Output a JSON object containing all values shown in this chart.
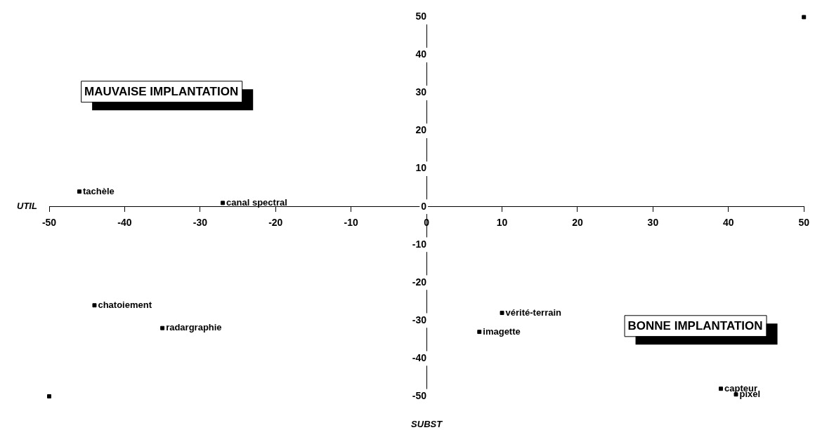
{
  "chart_data": {
    "type": "scatter",
    "xlabel": "SUBST",
    "ylabel": "UTIL",
    "x": [
      50,
      -50,
      -46,
      -27,
      -44,
      -35,
      10,
      7,
      39,
      41
    ],
    "series": [
      {
        "color": "#000000",
        "values": [
          50,
          -50,
          4,
          1,
          -26,
          -32,
          -28,
          -33,
          -48,
          -49.5
        ]
      }
    ],
    "xlim": [
      -50,
      50
    ],
    "xticks": [
      -50,
      -40,
      -30,
      -20,
      -10,
      0,
      10,
      20,
      30,
      40,
      50
    ],
    "ylim": [
      -50,
      50
    ],
    "yticks": [
      -50,
      -40,
      -30,
      -20,
      -10,
      0,
      10,
      20,
      30,
      40,
      50
    ],
    "grid": false,
    "legend": false,
    "marker": "square",
    "annotations": [
      "MAUVAISE IMPLANTATION",
      "BONNE IMPLANTATION",
      {
        "text": "tachèle",
        "x": -46,
        "y": 4
      },
      {
        "text": "canal spectral",
        "x": -27,
        "y": 1
      },
      {
        "text": "chatoiement",
        "x": -44,
        "y": -26
      },
      {
        "text": "radargraphie",
        "x": -35,
        "y": -32
      },
      {
        "text": "vérité-terrain",
        "x": 10,
        "y": -28
      },
      {
        "text": "imagette",
        "x": 7,
        "y": -33
      },
      {
        "text": "capteur",
        "x": 39,
        "y": -48
      },
      {
        "text": "pixel",
        "x": 41,
        "y": -49.5
      }
    ]
  }
}
